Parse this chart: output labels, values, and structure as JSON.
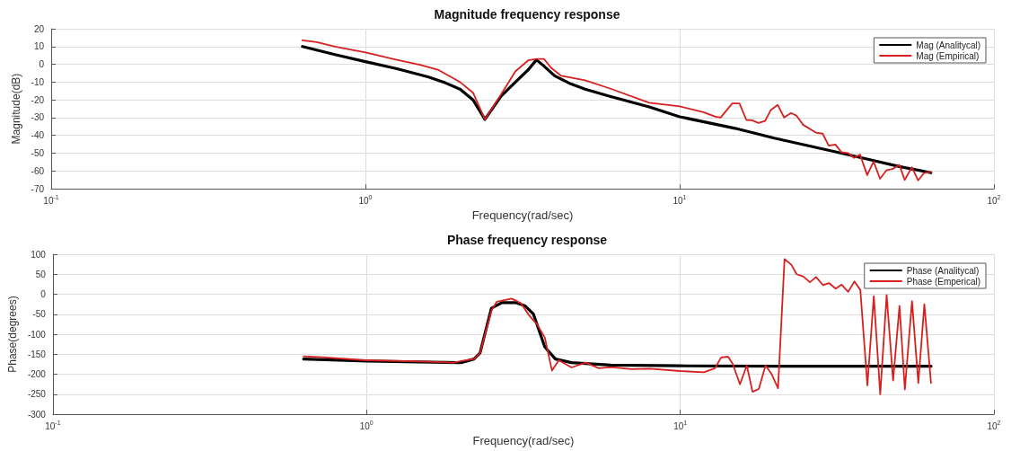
{
  "chart_data": [
    {
      "type": "line",
      "title": "Magnitude frequency response",
      "xlabel": "Frequency(rad/sec)",
      "ylabel": "Magnitude(dB)",
      "log": "x",
      "grid": true,
      "legend": "top right",
      "marker": "none",
      "line_style": "solid",
      "xlim": [
        0.1,
        100
      ],
      "xticks": [
        {
          "value": 0.1,
          "label": "10$^{-1}$"
        },
        {
          "value": 1,
          "label": "10$^{0}$"
        },
        {
          "value": 10,
          "label": "10$^{1}$"
        },
        {
          "value": 100,
          "label": "10$^{2}$"
        }
      ],
      "ylim": [
        -70,
        20
      ],
      "yticks": [
        -70,
        -60,
        -50,
        -40,
        -30,
        -20,
        -10,
        0,
        10,
        20
      ],
      "series": [
        {
          "name": "Mag (Analitycal)",
          "color": "#000000",
          "x": [
            0.63,
            0.8,
            1,
            1.26,
            1.58,
            1.8,
            2.0,
            2.2,
            2.4,
            2.7,
            3.0,
            3.3,
            3.5,
            3.7,
            4.0,
            4.5,
            5,
            6,
            8,
            10,
            15,
            20,
            30,
            40,
            50,
            63
          ],
          "values": [
            10,
            5.5,
            1.5,
            -2.5,
            -7,
            -10.5,
            -14,
            -20,
            -31,
            -18,
            -10,
            -3,
            2.5,
            -1,
            -6.5,
            -11,
            -14,
            -18,
            -24,
            -29.5,
            -36,
            -41.5,
            -48.5,
            -53.5,
            -57.5,
            -61
          ]
        },
        {
          "name": "Mag (Empirical)",
          "color": "#d62020",
          "x": [
            0.63,
            0.7,
            0.8,
            1,
            1.26,
            1.5,
            1.7,
            2.0,
            2.2,
            2.4,
            2.7,
            3.0,
            3.3,
            3.5,
            3.7,
            3.9,
            4.2,
            5,
            6,
            8,
            10,
            11.9,
            13,
            13.5,
            14.7,
            15.5,
            16.3,
            17.0,
            17.8,
            18.7,
            19.5,
            20.5,
            21.5,
            22.6,
            23.5,
            24.7,
            27.1,
            28.5,
            29.8,
            31.3,
            32.7,
            34.3,
            35.9,
            37.5,
            39.5,
            41.4,
            43.4,
            45.5,
            47.7,
            50,
            52,
            54.8,
            57.4,
            60,
            63
          ],
          "values": [
            13.5,
            12.5,
            10,
            6.7,
            2.5,
            -0.4,
            -3,
            -10,
            -16,
            -31,
            -17,
            -4,
            2.3,
            3,
            3,
            -2,
            -6.5,
            -9,
            -13.6,
            -21.6,
            -23.7,
            -26.9,
            -29.5,
            -30,
            -22,
            -22,
            -31.3,
            -31.5,
            -33,
            -31.9,
            -25.7,
            -22.8,
            -29.9,
            -27.4,
            -28.8,
            -34,
            -38.4,
            -39,
            -45.8,
            -45.1,
            -49.4,
            -49.9,
            -52.6,
            -50.8,
            -62.3,
            -54.7,
            -64.4,
            -59.6,
            -58.8,
            -56.5,
            -65,
            -57.9,
            -65.3,
            -61,
            -60.5
          ]
        }
      ]
    },
    {
      "type": "line",
      "title": "Phase frequency response",
      "xlabel": "Frequency(rad/sec)",
      "ylabel": "Phase(degrees)",
      "log": "x",
      "grid": true,
      "legend": "top right",
      "marker": "none",
      "line_style": "solid",
      "xlim": [
        0.1,
        100
      ],
      "xticks": [
        {
          "value": 0.1,
          "label": "10$^{-1}$"
        },
        {
          "value": 1,
          "label": "10$^{0}$"
        },
        {
          "value": 10,
          "label": "10$^{1}$"
        },
        {
          "value": 100,
          "label": "10$^{2}$"
        }
      ],
      "ylim": [
        -300,
        100
      ],
      "yticks": [
        -300,
        -250,
        -200,
        -150,
        -100,
        -50,
        0,
        50,
        100
      ],
      "series": [
        {
          "name": "Phase (Analitycal)",
          "color": "#000000",
          "x": [
            0.63,
            1.0,
            2.0,
            2.2,
            2.3,
            2.5,
            2.7,
            3.0,
            3.2,
            3.4,
            3.7,
            4.0,
            4.5,
            6,
            10,
            20,
            40,
            63
          ],
          "values": [
            -162,
            -167,
            -171,
            -162,
            -147,
            -35,
            -21,
            -21,
            -29,
            -49,
            -132,
            -162,
            -171,
            -177,
            -179,
            -180,
            -180,
            -180
          ]
        },
        {
          "name": "Phase (Emperical)",
          "color": "#d62020",
          "x": [
            0.63,
            0.7,
            1.0,
            1.5,
            1.9,
            2.0,
            2.2,
            2.3,
            2.5,
            2.6,
            2.9,
            3.1,
            3.3,
            3.5,
            3.7,
            3.9,
            4.1,
            4.5,
            5,
            5.5,
            6,
            7,
            8,
            10,
            11.9,
            12.9,
            13.5,
            14.2,
            14.7,
            15.5,
            16.3,
            17.0,
            17.8,
            18.7,
            19.5,
            20.5,
            21.5,
            22.6,
            23.5,
            24.7,
            25.9,
            27.1,
            28.5,
            29.8,
            31.3,
            32.7,
            34.3,
            35.9,
            37.5,
            39.5,
            41.4,
            43.4,
            45.5,
            47.7,
            50,
            52,
            54.8,
            57.4,
            60,
            63
          ],
          "values": [
            -155,
            -157,
            -165,
            -168,
            -171,
            -167,
            -162,
            -147,
            -41,
            -19,
            -11,
            -22,
            -53,
            -76,
            -108,
            -191,
            -165,
            -183,
            -171,
            -185,
            -182,
            -187,
            -186,
            -192,
            -195,
            -185,
            -158,
            -156,
            -174,
            -225,
            -178,
            -244,
            -237,
            -178,
            -198,
            -235,
            88,
            74,
            50,
            44,
            30,
            43,
            23,
            28,
            14,
            24,
            6,
            32,
            11,
            -228,
            -5,
            -250,
            -2,
            -216,
            -29,
            -238,
            -17,
            -222,
            -25,
            -222
          ]
        }
      ]
    }
  ]
}
